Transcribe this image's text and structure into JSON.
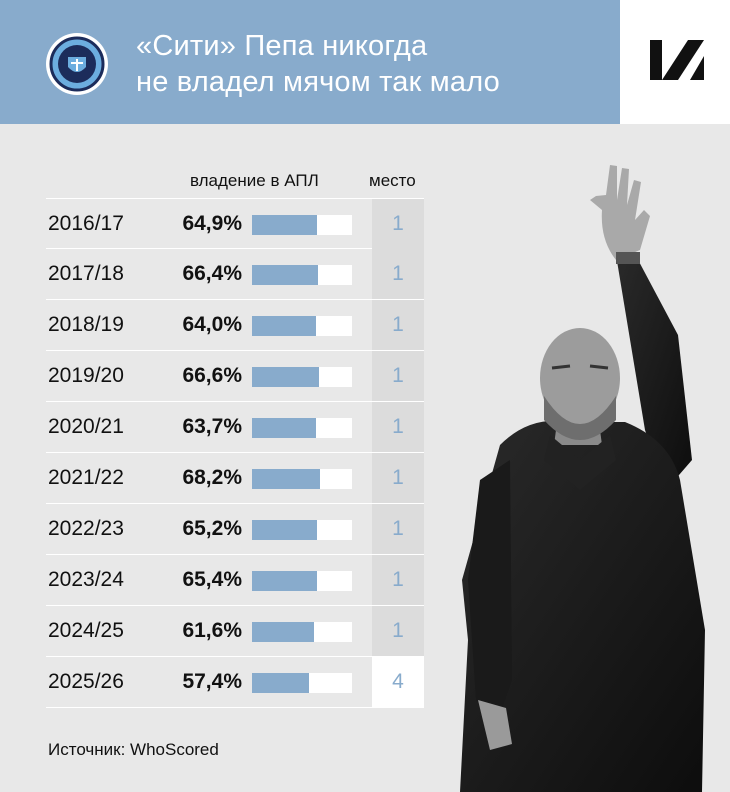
{
  "header": {
    "title_line1": "«Сити» Пепа никогда",
    "title_line2": "не владел мячом так мало",
    "crest_text": "MANCHESTER CITY"
  },
  "colors": {
    "accent": "#88abcc",
    "background": "#e8e8e8",
    "place_cell": "#dcdcdc",
    "highlight_cell": "#ffffff"
  },
  "chart_data": {
    "type": "table",
    "column_headers": {
      "possession": "владение в АПЛ",
      "place": "место"
    },
    "rows": [
      {
        "season": "2016/17",
        "possession_label": "64,9%",
        "possession": 64.9,
        "place": "1"
      },
      {
        "season": "2017/18",
        "possession_label": "66,4%",
        "possession": 66.4,
        "place": "1"
      },
      {
        "season": "2018/19",
        "possession_label": "64,0%",
        "possession": 64.0,
        "place": "1"
      },
      {
        "season": "2019/20",
        "possession_label": "66,6%",
        "possession": 66.6,
        "place": "1"
      },
      {
        "season": "2020/21",
        "possession_label": "63,7%",
        "possession": 63.7,
        "place": "1"
      },
      {
        "season": "2021/22",
        "possession_label": "68,2%",
        "possession": 68.2,
        "place": "1"
      },
      {
        "season": "2022/23",
        "possession_label": "65,2%",
        "possession": 65.2,
        "place": "1"
      },
      {
        "season": "2023/24",
        "possession_label": "65,4%",
        "possession": 65.4,
        "place": "1"
      },
      {
        "season": "2024/25",
        "possession_label": "61,6%",
        "possession": 61.6,
        "place": "1"
      },
      {
        "season": "2025/26",
        "possession_label": "57,4%",
        "possession": 57.4,
        "place": "4",
        "highlight": true
      }
    ],
    "bar_range": [
      0,
      100
    ]
  },
  "footer": {
    "source": "Источник: WhoScored"
  }
}
